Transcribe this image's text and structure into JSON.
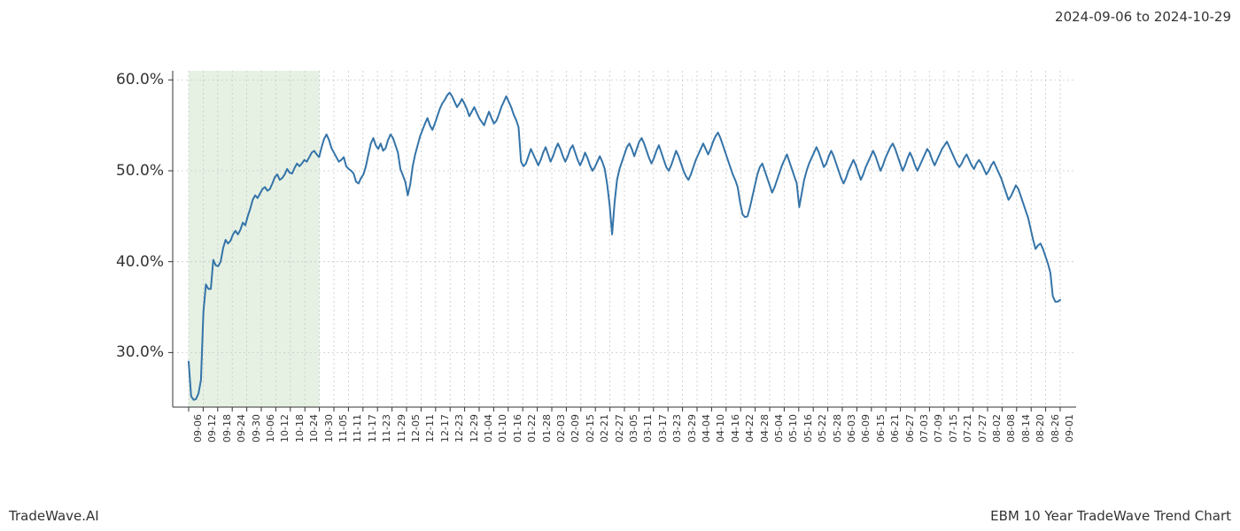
{
  "header": {
    "date_range": "2024-09-06 to 2024-10-29"
  },
  "footer": {
    "left": "TradeWave.AI",
    "right": "EBM 10 Year TradeWave Trend Chart"
  },
  "chart": {
    "type": "line",
    "background_color": "#ffffff",
    "line_color": "#3574a8",
    "line_width": 2,
    "grid_color": "#c9c9c9",
    "grid_dash": "2 3",
    "axis_color": "#333333",
    "highlight_band": {
      "fill": "#d8e9d6",
      "opacity": 0.65,
      "x_start_label": "09-06",
      "x_end_label": "10-30"
    },
    "y_axis": {
      "min": 24,
      "max": 61,
      "ticks": [
        30,
        40,
        50,
        60
      ],
      "tick_labels": [
        "30.0%",
        "40.0%",
        "50.0%",
        "60.0%"
      ],
      "label_fontsize": 17
    },
    "x_axis": {
      "label_fontsize": 11,
      "rotation": 90,
      "labels": [
        "09-06",
        "09-12",
        "09-18",
        "09-24",
        "09-30",
        "10-06",
        "10-12",
        "10-18",
        "10-24",
        "10-30",
        "11-05",
        "11-11",
        "11-17",
        "11-23",
        "11-29",
        "12-05",
        "12-11",
        "12-17",
        "12-23",
        "12-29",
        "01-04",
        "01-10",
        "01-16",
        "01-22",
        "01-28",
        "02-03",
        "02-09",
        "02-15",
        "02-21",
        "02-27",
        "03-05",
        "03-11",
        "03-17",
        "03-23",
        "03-29",
        "04-04",
        "04-10",
        "04-16",
        "04-22",
        "04-28",
        "05-04",
        "05-10",
        "05-16",
        "05-22",
        "05-28",
        "06-03",
        "06-09",
        "06-15",
        "06-21",
        "06-27",
        "07-03",
        "07-09",
        "07-15",
        "07-21",
        "07-27",
        "08-02",
        "08-08",
        "08-14",
        "08-20",
        "08-26",
        "09-01"
      ]
    },
    "series": {
      "name": "EBM 10Y",
      "y": [
        29.0,
        25.2,
        24.8,
        24.9,
        25.5,
        27.0,
        34.5,
        37.5,
        37.0,
        37.0,
        40.2,
        39.6,
        39.5,
        40.0,
        41.5,
        42.4,
        42.0,
        42.3,
        43.0,
        43.4,
        43.0,
        43.5,
        44.3,
        44.0,
        45.0,
        45.8,
        46.8,
        47.3,
        47.0,
        47.5,
        48.0,
        48.2,
        47.8,
        48.0,
        48.6,
        49.3,
        49.6,
        49.0,
        49.2,
        49.6,
        50.2,
        49.8,
        49.7,
        50.3,
        50.8,
        50.5,
        50.8,
        51.2,
        51.0,
        51.5,
        52.0,
        52.2,
        51.8,
        51.5,
        52.6,
        53.5,
        54.0,
        53.4,
        52.5,
        52.0,
        51.5,
        51.0,
        51.2,
        51.5,
        50.5,
        50.2,
        50.0,
        49.7,
        48.8,
        48.6,
        49.2,
        49.6,
        50.5,
        51.8,
        53.0,
        53.6,
        52.8,
        52.4,
        53.0,
        52.2,
        52.5,
        53.4,
        54.0,
        53.6,
        52.8,
        52.0,
        50.2,
        49.5,
        48.8,
        47.3,
        48.5,
        50.5,
        51.8,
        52.8,
        53.8,
        54.5,
        55.2,
        55.8,
        55.0,
        54.5,
        55.2,
        56.0,
        56.8,
        57.4,
        57.8,
        58.3,
        58.6,
        58.2,
        57.6,
        57.0,
        57.4,
        57.9,
        57.4,
        56.8,
        56.0,
        56.5,
        57.0,
        56.4,
        55.8,
        55.4,
        55.0,
        55.8,
        56.5,
        55.8,
        55.2,
        55.5,
        56.2,
        57.0,
        57.6,
        58.2,
        57.6,
        57.0,
        56.2,
        55.6,
        54.8,
        51.0,
        50.5,
        50.8,
        51.6,
        52.4,
        51.8,
        51.2,
        50.6,
        51.2,
        52.0,
        52.6,
        51.8,
        51.0,
        51.6,
        52.4,
        53.0,
        52.4,
        51.6,
        51.0,
        51.6,
        52.4,
        52.8,
        52.0,
        51.2,
        50.6,
        51.2,
        52.0,
        51.4,
        50.6,
        50.0,
        50.4,
        51.0,
        51.6,
        51.0,
        50.2,
        48.5,
        46.2,
        43.0,
        46.5,
        49.0,
        50.2,
        51.0,
        51.8,
        52.6,
        53.0,
        52.4,
        51.6,
        52.4,
        53.2,
        53.6,
        53.0,
        52.2,
        51.4,
        50.8,
        51.4,
        52.2,
        52.8,
        52.0,
        51.2,
        50.4,
        50.0,
        50.6,
        51.4,
        52.2,
        51.6,
        50.8,
        50.0,
        49.4,
        49.0,
        49.6,
        50.4,
        51.2,
        51.8,
        52.4,
        53.0,
        52.4,
        51.8,
        52.4,
        53.2,
        53.8,
        54.2,
        53.6,
        52.8,
        52.0,
        51.2,
        50.4,
        49.6,
        49.0,
        48.2,
        46.5,
        45.2,
        44.9,
        45.0,
        46.0,
        47.2,
        48.4,
        49.6,
        50.4,
        50.8,
        50.0,
        49.2,
        48.4,
        47.6,
        48.2,
        49.0,
        49.8,
        50.6,
        51.2,
        51.8,
        51.0,
        50.2,
        49.4,
        48.6,
        46.0,
        47.5,
        49.0,
        50.0,
        50.8,
        51.4,
        52.0,
        52.6,
        52.0,
        51.2,
        50.4,
        50.8,
        51.6,
        52.2,
        51.6,
        50.8,
        50.0,
        49.2,
        48.6,
        49.2,
        50.0,
        50.6,
        51.2,
        50.6,
        49.8,
        49.0,
        49.6,
        50.4,
        51.0,
        51.6,
        52.2,
        51.6,
        50.8,
        50.0,
        50.6,
        51.4,
        52.0,
        52.6,
        53.0,
        52.4,
        51.6,
        50.8,
        50.0,
        50.6,
        51.4,
        52.0,
        51.4,
        50.6,
        50.0,
        50.6,
        51.2,
        51.8,
        52.4,
        52.0,
        51.2,
        50.6,
        51.2,
        51.8,
        52.4,
        52.8,
        53.2,
        52.6,
        52.0,
        51.4,
        50.8,
        50.4,
        50.8,
        51.4,
        51.8,
        51.2,
        50.6,
        50.2,
        50.8,
        51.2,
        50.8,
        50.2,
        49.6,
        50.0,
        50.6,
        51.0,
        50.4,
        49.8,
        49.2,
        48.4,
        47.6,
        46.8,
        47.2,
        47.8,
        48.4,
        48.0,
        47.2,
        46.4,
        45.6,
        44.8,
        43.6,
        42.4,
        41.4,
        41.8,
        42.0,
        41.4,
        40.6,
        39.8,
        38.8,
        36.2,
        35.6,
        35.6,
        35.8
      ]
    }
  }
}
